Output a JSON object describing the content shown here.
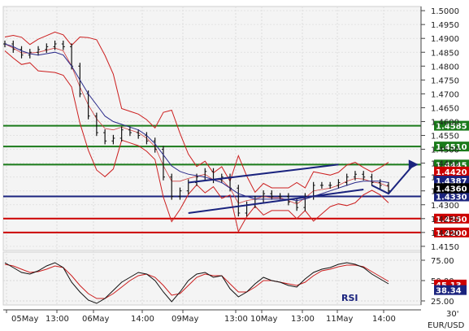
{
  "chart_data": {
    "type": "line",
    "instrument": "EUR/USD",
    "timeframe": "30'",
    "main_panel": {
      "price_axis": {
        "ticks": [
          "1.5000",
          "1.4950",
          "1.4900",
          "1.4850",
          "1.4800",
          "1.4750",
          "1.4700",
          "1.4650",
          "1.4600",
          "1.4550",
          "1.4500",
          "1.4450",
          "1.4400",
          "1.4350",
          "1.4300",
          "1.4250",
          "1.4200",
          "1.4150"
        ],
        "ylim": [
          1.4135,
          1.5015
        ]
      },
      "support_resistance_levels": [
        {
          "value": 1.4585,
          "label": "1.4585",
          "color": "#1a7a1a"
        },
        {
          "value": 1.451,
          "label": "1.4510",
          "color": "#1a7a1a"
        },
        {
          "value": 1.4445,
          "label": "1.4445",
          "color": "#1a7a1a"
        },
        {
          "value": 1.433,
          "label": "1.4330",
          "color": "#1a237e"
        },
        {
          "value": 1.425,
          "label": "1.4250",
          "color": "#cc0000"
        },
        {
          "value": 1.42,
          "label": "1.4200",
          "color": "#cc0000"
        }
      ],
      "price_markers": [
        {
          "value": 1.442,
          "label": "1.4420",
          "color": "#cc0000"
        },
        {
          "value": 1.4387,
          "label": "1.4387",
          "color": "#1a237e"
        },
        {
          "value": 1.436,
          "label": "1.4360",
          "color": "#000000"
        }
      ],
      "price_series": {
        "name": "",
        "values": [
          1.488,
          1.486,
          1.484,
          1.485,
          1.486,
          1.487,
          1.488,
          1.487,
          1.48,
          1.47,
          1.462,
          1.456,
          1.453,
          1.454,
          1.457,
          1.456,
          1.455,
          1.453,
          1.45,
          1.44,
          1.433,
          1.435,
          1.438,
          1.44,
          1.442,
          1.439,
          1.44,
          1.436,
          1.427,
          1.43,
          1.432,
          1.434,
          1.433,
          1.433,
          1.431,
          1.429,
          1.433,
          1.437,
          1.437,
          1.437,
          1.438,
          1.44,
          1.441,
          1.44,
          1.438,
          1.437,
          1.435
        ]
      },
      "moving_average": {
        "name": "",
        "values": [
          1.488,
          1.487,
          1.4855,
          1.4845,
          1.484,
          1.4845,
          1.485,
          1.484,
          1.48,
          1.475,
          1.47,
          1.466,
          1.462,
          1.46,
          1.459,
          1.458,
          1.457,
          1.455,
          1.452,
          1.448,
          1.444,
          1.442,
          1.441,
          1.4405,
          1.44,
          1.439,
          1.438,
          1.436,
          1.434,
          1.433,
          1.432,
          1.432,
          1.432,
          1.432,
          1.432,
          1.4315,
          1.432,
          1.433,
          1.434,
          1.435,
          1.436,
          1.437,
          1.438,
          1.4385,
          1.4385,
          1.4385,
          1.438
        ]
      },
      "trend_channel": {
        "upper": {
          "x": [
            22,
            40
          ],
          "y": [
            1.438,
            1.4445
          ]
        },
        "lower": {
          "x": [
            22,
            43
          ],
          "y": [
            1.427,
            1.4355
          ]
        },
        "projection": [
          {
            "x": 44,
            "y": 1.437
          },
          {
            "x": 46,
            "y": 1.434
          },
          {
            "x": 49,
            "y": 1.4445
          }
        ]
      },
      "time_labels": [
        "05May",
        "13:00",
        "06May",
        "14:00",
        "09May",
        "13:00",
        "10May",
        "13:00",
        "11May",
        "14:00"
      ]
    },
    "rsi_panel": {
      "label": "RSI",
      "ticks": [
        "75.00",
        "50.00",
        "25.00"
      ],
      "ylim": [
        20,
        85
      ],
      "markers": [
        {
          "value": 45.13,
          "label": "45.13",
          "color": "#cc0000"
        },
        {
          "value": 38.34,
          "label": "38.34",
          "color": "#1a237e"
        }
      ],
      "rsi_values": [
        72,
        66,
        60,
        58,
        62,
        68,
        72,
        66,
        48,
        36,
        26,
        22,
        28,
        38,
        48,
        54,
        60,
        58,
        50,
        36,
        24,
        36,
        50,
        58,
        60,
        54,
        56,
        40,
        30,
        36,
        46,
        54,
        50,
        48,
        44,
        42,
        52,
        60,
        64,
        66,
        70,
        72,
        70,
        66,
        58,
        52,
        46
      ],
      "signal_values": [
        70,
        68,
        64,
        60,
        61,
        64,
        68,
        66,
        56,
        44,
        34,
        28,
        28,
        34,
        42,
        50,
        56,
        58,
        54,
        44,
        32,
        34,
        44,
        54,
        58,
        56,
        56,
        46,
        36,
        36,
        42,
        50,
        50,
        48,
        46,
        44,
        48,
        56,
        62,
        64,
        67,
        69,
        69,
        67,
        61,
        55,
        49
      ]
    }
  }
}
